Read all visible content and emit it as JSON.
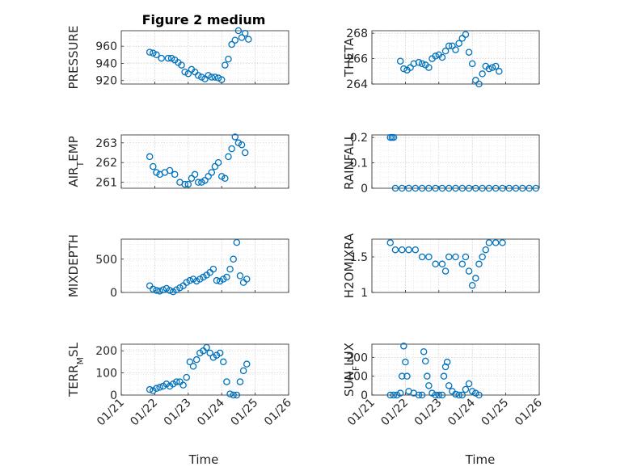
{
  "chart_data": {
    "type": "scatter",
    "title": "Figure 2 medium",
    "xlabel": "Time",
    "x_ticks": [
      "01/21",
      "01/22",
      "01/23",
      "01/24",
      "01/25",
      "01/26"
    ],
    "x_range_days": [
      0,
      5
    ],
    "marker_color": "#0072bd",
    "panels": [
      {
        "id": "pressure",
        "ylabel": "PRESSURE",
        "ylim": [
          916,
          978
        ],
        "yticks": [
          920,
          940,
          960
        ],
        "ytick_labels": [
          "920",
          "940",
          "960"
        ],
        "series": [
          [
            0.85,
            953
          ],
          [
            0.95,
            952
          ],
          [
            1.05,
            950
          ],
          [
            1.2,
            946
          ],
          [
            1.4,
            946
          ],
          [
            1.5,
            946
          ],
          [
            1.6,
            944
          ],
          [
            1.7,
            941
          ],
          [
            1.8,
            938
          ],
          [
            1.9,
            930
          ],
          [
            2.0,
            928
          ],
          [
            2.1,
            933
          ],
          [
            2.2,
            930
          ],
          [
            2.3,
            926
          ],
          [
            2.4,
            924
          ],
          [
            2.5,
            922
          ],
          [
            2.6,
            926
          ],
          [
            2.7,
            924
          ],
          [
            2.8,
            924
          ],
          [
            2.9,
            923
          ],
          [
            3.0,
            921
          ],
          [
            3.1,
            938
          ],
          [
            3.2,
            945
          ],
          [
            3.3,
            962
          ],
          [
            3.4,
            967
          ],
          [
            3.5,
            978
          ],
          [
            3.6,
            970
          ],
          [
            3.7,
            975
          ],
          [
            3.8,
            968
          ]
        ]
      },
      {
        "id": "theta",
        "ylabel": "THETA",
        "ylim": [
          264,
          268.2
        ],
        "yticks": [
          264,
          266,
          268
        ],
        "ytick_labels": [
          "264",
          "266",
          "268"
        ],
        "series": [
          [
            0.85,
            265.8
          ],
          [
            0.95,
            265.2
          ],
          [
            1.05,
            265.1
          ],
          [
            1.15,
            265.3
          ],
          [
            1.25,
            265.6
          ],
          [
            1.4,
            265.7
          ],
          [
            1.5,
            265.6
          ],
          [
            1.6,
            265.5
          ],
          [
            1.7,
            265.3
          ],
          [
            1.8,
            266.0
          ],
          [
            1.9,
            266.2
          ],
          [
            2.0,
            266.3
          ],
          [
            2.1,
            266.1
          ],
          [
            2.2,
            266.6
          ],
          [
            2.3,
            267.0
          ],
          [
            2.4,
            267.0
          ],
          [
            2.5,
            266.7
          ],
          [
            2.6,
            267.2
          ],
          [
            2.7,
            267.6
          ],
          [
            2.8,
            267.9
          ],
          [
            2.9,
            266.5
          ],
          [
            3.0,
            265.6
          ],
          [
            3.1,
            264.3
          ],
          [
            3.2,
            264.0
          ],
          [
            3.3,
            264.8
          ],
          [
            3.4,
            265.4
          ],
          [
            3.5,
            265.2
          ],
          [
            3.6,
            265.3
          ],
          [
            3.7,
            265.4
          ],
          [
            3.8,
            265.0
          ]
        ]
      },
      {
        "id": "air_temp",
        "ylabel": "AIR_TEMP",
        "ylim": [
          260.7,
          263.4
        ],
        "yticks": [
          261,
          262,
          263
        ],
        "ytick_labels": [
          "261",
          "262",
          "263"
        ],
        "series": [
          [
            0.85,
            262.3
          ],
          [
            0.95,
            261.8
          ],
          [
            1.05,
            261.5
          ],
          [
            1.15,
            261.4
          ],
          [
            1.3,
            261.5
          ],
          [
            1.45,
            261.6
          ],
          [
            1.6,
            261.4
          ],
          [
            1.75,
            261.0
          ],
          [
            1.9,
            260.9
          ],
          [
            2.0,
            260.9
          ],
          [
            2.1,
            261.2
          ],
          [
            2.2,
            261.4
          ],
          [
            2.3,
            261.0
          ],
          [
            2.4,
            261.0
          ],
          [
            2.5,
            261.1
          ],
          [
            2.6,
            261.3
          ],
          [
            2.7,
            261.5
          ],
          [
            2.8,
            261.8
          ],
          [
            2.9,
            262.0
          ],
          [
            3.0,
            261.3
          ],
          [
            3.1,
            261.2
          ],
          [
            3.2,
            262.3
          ],
          [
            3.3,
            262.7
          ],
          [
            3.4,
            263.3
          ],
          [
            3.5,
            263.0
          ],
          [
            3.6,
            262.9
          ],
          [
            3.7,
            262.5
          ]
        ]
      },
      {
        "id": "rainfall",
        "ylabel": "RAINFALL",
        "ylim": [
          0,
          0.21
        ],
        "yticks": [
          0,
          0.1,
          0.2
        ],
        "ytick_labels": [
          "0",
          "0.1",
          "0.2"
        ],
        "series": [
          [
            0.55,
            0.2
          ],
          [
            0.6,
            0.2
          ],
          [
            0.65,
            0.2
          ],
          [
            0.7,
            0.0
          ],
          [
            0.9,
            0.0
          ],
          [
            1.1,
            0.0
          ],
          [
            1.3,
            0.0
          ],
          [
            1.5,
            0.0
          ],
          [
            1.7,
            0.0
          ],
          [
            1.9,
            0.0
          ],
          [
            2.1,
            0.0
          ],
          [
            2.3,
            0.0
          ],
          [
            2.5,
            0.0
          ],
          [
            2.7,
            0.0
          ],
          [
            2.9,
            0.0
          ],
          [
            3.1,
            0.0
          ],
          [
            3.3,
            0.0
          ],
          [
            3.5,
            0.0
          ],
          [
            3.7,
            0.0
          ],
          [
            3.9,
            0.0
          ],
          [
            4.1,
            0.0
          ],
          [
            4.3,
            0.0
          ],
          [
            4.5,
            0.0
          ],
          [
            4.7,
            0.0
          ],
          [
            4.9,
            0.0
          ]
        ]
      },
      {
        "id": "mixdepth",
        "ylabel": "MIXDEPTH",
        "ylim": [
          0,
          800
        ],
        "yticks": [
          0,
          500
        ],
        "ytick_labels": [
          "0",
          "500"
        ],
        "series": [
          [
            0.85,
            100
          ],
          [
            0.95,
            50
          ],
          [
            1.05,
            30
          ],
          [
            1.15,
            20
          ],
          [
            1.25,
            40
          ],
          [
            1.35,
            60
          ],
          [
            1.45,
            30
          ],
          [
            1.55,
            10
          ],
          [
            1.65,
            40
          ],
          [
            1.75,
            70
          ],
          [
            1.85,
            100
          ],
          [
            1.95,
            150
          ],
          [
            2.05,
            180
          ],
          [
            2.15,
            200
          ],
          [
            2.25,
            170
          ],
          [
            2.35,
            200
          ],
          [
            2.45,
            230
          ],
          [
            2.55,
            260
          ],
          [
            2.65,
            300
          ],
          [
            2.75,
            350
          ],
          [
            2.85,
            180
          ],
          [
            2.95,
            170
          ],
          [
            3.05,
            200
          ],
          [
            3.15,
            230
          ],
          [
            3.25,
            350
          ],
          [
            3.35,
            500
          ],
          [
            3.45,
            750
          ],
          [
            3.55,
            250
          ],
          [
            3.65,
            150
          ],
          [
            3.75,
            200
          ]
        ]
      },
      {
        "id": "h2omixra",
        "ylabel": "H2OMIXRA",
        "ylim": [
          1.0,
          1.75
        ],
        "yticks": [
          1,
          1.5
        ],
        "ytick_labels": [
          "1",
          "1.5"
        ],
        "series": [
          [
            0.55,
            1.7
          ],
          [
            0.7,
            1.6
          ],
          [
            0.9,
            1.6
          ],
          [
            1.1,
            1.6
          ],
          [
            1.3,
            1.6
          ],
          [
            1.5,
            1.5
          ],
          [
            1.7,
            1.5
          ],
          [
            1.9,
            1.4
          ],
          [
            2.1,
            1.4
          ],
          [
            2.2,
            1.3
          ],
          [
            2.3,
            1.5
          ],
          [
            2.5,
            1.5
          ],
          [
            2.7,
            1.4
          ],
          [
            2.8,
            1.5
          ],
          [
            2.9,
            1.3
          ],
          [
            3.0,
            1.1
          ],
          [
            3.1,
            1.2
          ],
          [
            3.2,
            1.4
          ],
          [
            3.3,
            1.5
          ],
          [
            3.4,
            1.6
          ],
          [
            3.5,
            1.7
          ],
          [
            3.7,
            1.7
          ],
          [
            3.9,
            1.7
          ]
        ]
      },
      {
        "id": "terr_msl",
        "ylabel": "TERR_MSL",
        "ylim": [
          0,
          230
        ],
        "yticks": [
          0,
          100,
          200
        ],
        "ytick_labels": [
          "0",
          "100",
          "200"
        ],
        "series": [
          [
            0.85,
            25
          ],
          [
            0.95,
            20
          ],
          [
            1.05,
            30
          ],
          [
            1.15,
            35
          ],
          [
            1.25,
            40
          ],
          [
            1.35,
            50
          ],
          [
            1.45,
            40
          ],
          [
            1.55,
            50
          ],
          [
            1.65,
            60
          ],
          [
            1.75,
            60
          ],
          [
            1.85,
            45
          ],
          [
            1.95,
            80
          ],
          [
            2.05,
            150
          ],
          [
            2.15,
            130
          ],
          [
            2.25,
            160
          ],
          [
            2.35,
            190
          ],
          [
            2.45,
            200
          ],
          [
            2.55,
            215
          ],
          [
            2.65,
            190
          ],
          [
            2.75,
            170
          ],
          [
            2.85,
            180
          ],
          [
            2.95,
            190
          ],
          [
            3.05,
            150
          ],
          [
            3.15,
            60
          ],
          [
            3.25,
            5
          ],
          [
            3.35,
            0
          ],
          [
            3.45,
            0
          ],
          [
            3.55,
            60
          ],
          [
            3.65,
            110
          ],
          [
            3.75,
            140
          ]
        ]
      },
      {
        "id": "sun_flux",
        "ylabel": "SUN_FLUX",
        "ylim": [
          0,
          270
        ],
        "yticks": [
          0,
          100,
          200
        ],
        "ytick_labels": [
          "0",
          "100",
          "200"
        ],
        "series": [
          [
            0.55,
            0
          ],
          [
            0.65,
            0
          ],
          [
            0.75,
            0
          ],
          [
            0.85,
            10
          ],
          [
            0.9,
            100
          ],
          [
            0.95,
            260
          ],
          [
            1.0,
            175
          ],
          [
            1.05,
            100
          ],
          [
            1.1,
            20
          ],
          [
            1.25,
            10
          ],
          [
            1.4,
            0
          ],
          [
            1.5,
            0
          ],
          [
            1.55,
            230
          ],
          [
            1.6,
            180
          ],
          [
            1.65,
            100
          ],
          [
            1.7,
            50
          ],
          [
            1.8,
            10
          ],
          [
            1.9,
            0
          ],
          [
            2.0,
            0
          ],
          [
            2.1,
            0
          ],
          [
            2.15,
            100
          ],
          [
            2.2,
            150
          ],
          [
            2.25,
            175
          ],
          [
            2.3,
            50
          ],
          [
            2.4,
            20
          ],
          [
            2.5,
            5
          ],
          [
            2.6,
            0
          ],
          [
            2.7,
            0
          ],
          [
            2.8,
            30
          ],
          [
            2.9,
            60
          ],
          [
            3.0,
            20
          ],
          [
            3.1,
            10
          ],
          [
            3.2,
            0
          ]
        ]
      }
    ]
  }
}
